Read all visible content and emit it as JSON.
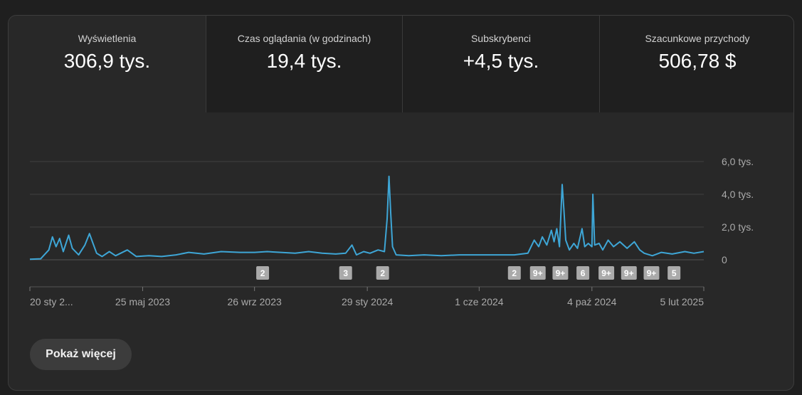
{
  "metrics": [
    {
      "label": "Wyświetlenia",
      "value": "306,9 tys.",
      "active": true
    },
    {
      "label": "Czas oglądania (w godzinach)",
      "value": "19,4 tys.",
      "active": false
    },
    {
      "label": "Subskrybenci",
      "value": "+4,5 tys.",
      "active": false
    },
    {
      "label": "Szacunkowe przychody",
      "value": "506,78 $",
      "active": false
    }
  ],
  "more_button": "Pokaż więcej",
  "colors": {
    "line": "#3ea6d6",
    "grid": "#3f3f3f",
    "badge": "#aaaaaa",
    "text": "#aaaaaa"
  },
  "chart_data": {
    "type": "line",
    "x_start": "2023-01-20",
    "x_end": "2025-02-05",
    "xticks": [
      {
        "date": "2023-01-20",
        "label": "20 sty 2..."
      },
      {
        "date": "2023-05-25",
        "label": "25 maj 2023"
      },
      {
        "date": "2023-09-26",
        "label": "26 wrz 2023"
      },
      {
        "date": "2024-01-29",
        "label": "29 sty 2024"
      },
      {
        "date": "2024-06-01",
        "label": "1 cze 2024"
      },
      {
        "date": "2024-10-04",
        "label": "4 paź 2024"
      },
      {
        "date": "2025-02-05",
        "label": "5 lut 2025"
      }
    ],
    "yticks": [
      {
        "value": 0,
        "label": "0"
      },
      {
        "value": 2000,
        "label": "2,0 tys."
      },
      {
        "value": 4000,
        "label": "4,0 tys."
      },
      {
        "value": 6000,
        "label": "6,0 tys."
      }
    ],
    "ylim": [
      0,
      6000
    ],
    "series": [
      {
        "points": [
          [
            "2023-01-20",
            30
          ],
          [
            "2023-02-01",
            60
          ],
          [
            "2023-02-10",
            600
          ],
          [
            "2023-02-14",
            1400
          ],
          [
            "2023-02-18",
            800
          ],
          [
            "2023-02-22",
            1300
          ],
          [
            "2023-02-26",
            500
          ],
          [
            "2023-03-04",
            1500
          ],
          [
            "2023-03-08",
            700
          ],
          [
            "2023-03-15",
            300
          ],
          [
            "2023-03-22",
            900
          ],
          [
            "2023-03-27",
            1600
          ],
          [
            "2023-03-31",
            1000
          ],
          [
            "2023-04-04",
            400
          ],
          [
            "2023-04-10",
            200
          ],
          [
            "2023-04-18",
            500
          ],
          [
            "2023-04-25",
            250
          ],
          [
            "2023-05-08",
            600
          ],
          [
            "2023-05-18",
            200
          ],
          [
            "2023-06-01",
            250
          ],
          [
            "2023-06-15",
            200
          ],
          [
            "2023-07-01",
            300
          ],
          [
            "2023-07-15",
            450
          ],
          [
            "2023-08-01",
            350
          ],
          [
            "2023-08-20",
            500
          ],
          [
            "2023-09-10",
            450
          ],
          [
            "2023-09-26",
            450
          ],
          [
            "2023-10-10",
            500
          ],
          [
            "2023-10-25",
            450
          ],
          [
            "2023-11-10",
            400
          ],
          [
            "2023-11-25",
            500
          ],
          [
            "2023-12-10",
            400
          ],
          [
            "2023-12-25",
            350
          ],
          [
            "2024-01-05",
            400
          ],
          [
            "2024-01-12",
            900
          ],
          [
            "2024-01-17",
            300
          ],
          [
            "2024-01-25",
            500
          ],
          [
            "2024-02-01",
            400
          ],
          [
            "2024-02-10",
            600
          ],
          [
            "2024-02-17",
            500
          ],
          [
            "2024-02-20",
            2500
          ],
          [
            "2024-02-22",
            5100
          ],
          [
            "2024-02-24",
            2800
          ],
          [
            "2024-02-26",
            800
          ],
          [
            "2024-03-01",
            300
          ],
          [
            "2024-03-15",
            250
          ],
          [
            "2024-04-01",
            300
          ],
          [
            "2024-04-20",
            250
          ],
          [
            "2024-05-10",
            300
          ],
          [
            "2024-06-01",
            300
          ],
          [
            "2024-06-20",
            300
          ],
          [
            "2024-07-10",
            300
          ],
          [
            "2024-07-25",
            400
          ],
          [
            "2024-08-01",
            1200
          ],
          [
            "2024-08-06",
            800
          ],
          [
            "2024-08-10",
            1400
          ],
          [
            "2024-08-15",
            900
          ],
          [
            "2024-08-20",
            1800
          ],
          [
            "2024-08-23",
            1100
          ],
          [
            "2024-08-26",
            1900
          ],
          [
            "2024-08-29",
            800
          ],
          [
            "2024-09-01",
            4600
          ],
          [
            "2024-09-03",
            3000
          ],
          [
            "2024-09-05",
            1200
          ],
          [
            "2024-09-09",
            600
          ],
          [
            "2024-09-14",
            1000
          ],
          [
            "2024-09-18",
            700
          ],
          [
            "2024-09-23",
            1900
          ],
          [
            "2024-09-26",
            800
          ],
          [
            "2024-09-30",
            1000
          ],
          [
            "2024-10-04",
            800
          ],
          [
            "2024-10-05",
            4000
          ],
          [
            "2024-10-07",
            900
          ],
          [
            "2024-10-12",
            1000
          ],
          [
            "2024-10-16",
            600
          ],
          [
            "2024-10-22",
            1200
          ],
          [
            "2024-10-28",
            800
          ],
          [
            "2024-11-04",
            1100
          ],
          [
            "2024-11-12",
            700
          ],
          [
            "2024-11-20",
            1100
          ],
          [
            "2024-11-26",
            600
          ],
          [
            "2024-12-01",
            400
          ],
          [
            "2024-12-10",
            250
          ],
          [
            "2024-12-20",
            450
          ],
          [
            "2025-01-01",
            350
          ],
          [
            "2025-01-15",
            500
          ],
          [
            "2025-01-25",
            400
          ],
          [
            "2025-02-05",
            500
          ]
        ]
      }
    ],
    "annotations": [
      {
        "date": "2023-10-05",
        "label": "2"
      },
      {
        "date": "2024-01-05",
        "label": "3"
      },
      {
        "date": "2024-02-15",
        "label": "2"
      },
      {
        "date": "2024-07-10",
        "label": "2"
      },
      {
        "date": "2024-08-05",
        "label": "9+"
      },
      {
        "date": "2024-08-30",
        "label": "9+"
      },
      {
        "date": "2024-09-24",
        "label": "6"
      },
      {
        "date": "2024-10-20",
        "label": "9+"
      },
      {
        "date": "2024-11-14",
        "label": "9+"
      },
      {
        "date": "2024-12-09",
        "label": "9+"
      },
      {
        "date": "2025-01-03",
        "label": "5"
      }
    ]
  }
}
